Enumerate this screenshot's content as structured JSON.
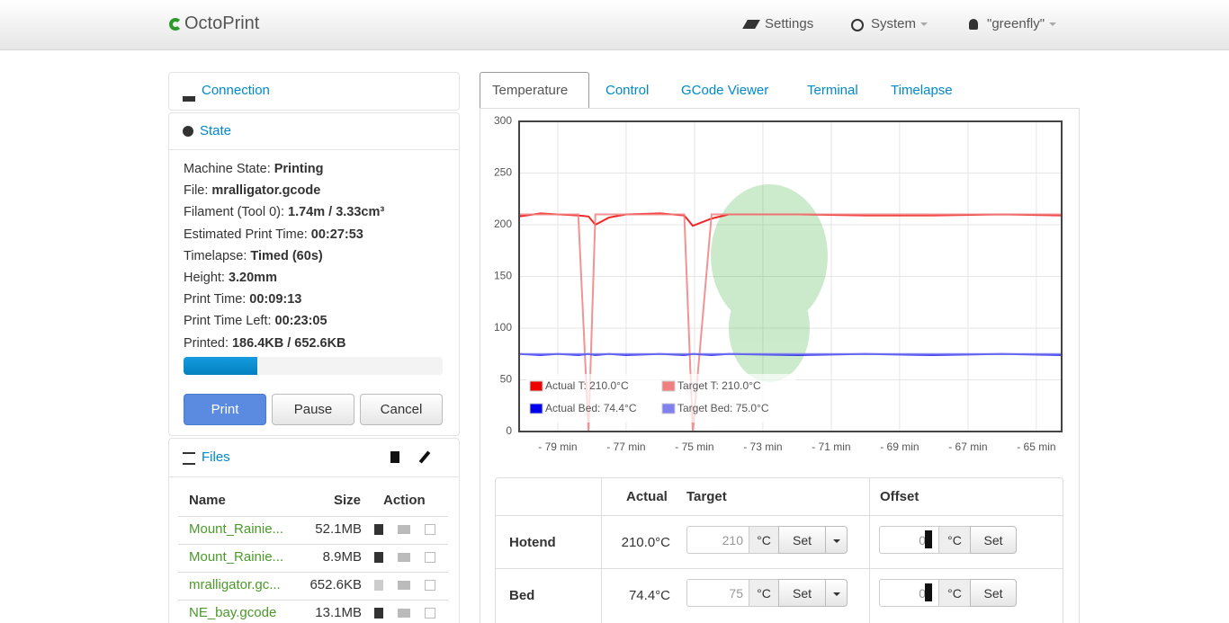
{
  "navbar": {
    "brand": "OctoPrint",
    "settings": "Settings",
    "system": "System",
    "user": "\"greenfly\""
  },
  "sidebar": {
    "connection": {
      "title": "Connection"
    },
    "state": {
      "title": "State",
      "items": [
        {
          "label": "Machine State:",
          "value": "Printing"
        },
        {
          "label": "File:",
          "value": "mralligator.gcode"
        },
        {
          "label": "Filament (Tool 0):",
          "value": "1.74m / 3.33cm³"
        },
        {
          "label": "Estimated Print Time:",
          "value": "00:27:53"
        },
        {
          "label": "Timelapse:",
          "value": "Timed (60s)"
        },
        {
          "label": "Height:",
          "value": "3.20mm"
        },
        {
          "label": "Print Time:",
          "value": "00:09:13"
        },
        {
          "label": "Print Time Left:",
          "value": "00:23:05"
        },
        {
          "label": "Printed:",
          "value": "186.4KB / 652.6KB"
        }
      ],
      "progress": 28.6,
      "buttons": [
        "Print",
        "Pause",
        "Cancel"
      ]
    },
    "files": {
      "title": "Files",
      "headers": [
        "Name",
        "Size",
        "Action"
      ],
      "rows": [
        [
          "Mount_Rainie...",
          "52.1MB"
        ],
        [
          "Mount_Rainie...",
          "8.9MB"
        ],
        [
          "mralligator.gc...",
          "652.6KB"
        ],
        [
          "NE_bay.gcode",
          "13.1MB"
        ]
      ]
    }
  },
  "tabs": [
    "Temperature",
    "Control",
    "GCode Viewer",
    "Terminal",
    "Timelapse"
  ],
  "chart_data": {
    "type": "line",
    "x": [
      -80.13,
      -79.5,
      -79,
      -78.4,
      -78.1,
      -77.9,
      -77.5,
      -77,
      -76,
      -75.3,
      -75.05,
      -74.5,
      -74,
      -72,
      -70,
      -68,
      -66,
      -64.26
    ],
    "series": [
      {
        "name": "Actual T: 210.0°C",
        "color": "#ee0000",
        "values": [
          208,
          211,
          210,
          209,
          208,
          200,
          207,
          210,
          211,
          209,
          199,
          206,
          210,
          210,
          209,
          209,
          210,
          209
        ]
      },
      {
        "name": "Target T: 210.0°C",
        "color": "#f08080",
        "values": [
          210,
          210,
          210,
          210,
          0,
          210,
          210,
          210,
          210,
          210,
          0,
          210,
          210,
          210,
          210,
          210,
          210,
          210
        ]
      },
      {
        "name": "Actual Bed: 74.4°C",
        "color": "#0000ee",
        "values": [
          75,
          74,
          75,
          74,
          75,
          74,
          75,
          74,
          75,
          74,
          75,
          74,
          75,
          74,
          75,
          74,
          75,
          74
        ]
      },
      {
        "name": "Target Bed: 75.0°C",
        "color": "#8080f0",
        "values": [
          75,
          75,
          75,
          75,
          75,
          75,
          75,
          75,
          75,
          75,
          75,
          75,
          75,
          75,
          75,
          75,
          75,
          75
        ]
      }
    ],
    "xlim": [
      -80.13,
      -64.26
    ],
    "ylim": [
      0,
      300
    ],
    "xticks": [
      {
        "value": -79,
        "label": "- 79 min"
      },
      {
        "value": -77,
        "label": "- 77 min"
      },
      {
        "value": -75,
        "label": "- 75 min"
      },
      {
        "value": -73,
        "label": "- 73 min"
      },
      {
        "value": -71,
        "label": "- 71 min"
      },
      {
        "value": -69,
        "label": "- 69 min"
      },
      {
        "value": -67,
        "label": "- 67 min"
      },
      {
        "value": -65,
        "label": "- 65 min"
      }
    ],
    "yticks": [
      0,
      50,
      100,
      150,
      200,
      250,
      300
    ],
    "grid": true,
    "legend": "lower left"
  },
  "temp_table": {
    "headers": [
      "Actual",
      "Target",
      "Offset"
    ],
    "unit": "°C",
    "set": "Set",
    "rows": [
      {
        "name": "Hotend",
        "actual": "210.0°C",
        "target": "210",
        "offset": "0"
      },
      {
        "name": "Bed",
        "actual": "74.4°C",
        "target": "75",
        "offset": "0"
      }
    ]
  }
}
